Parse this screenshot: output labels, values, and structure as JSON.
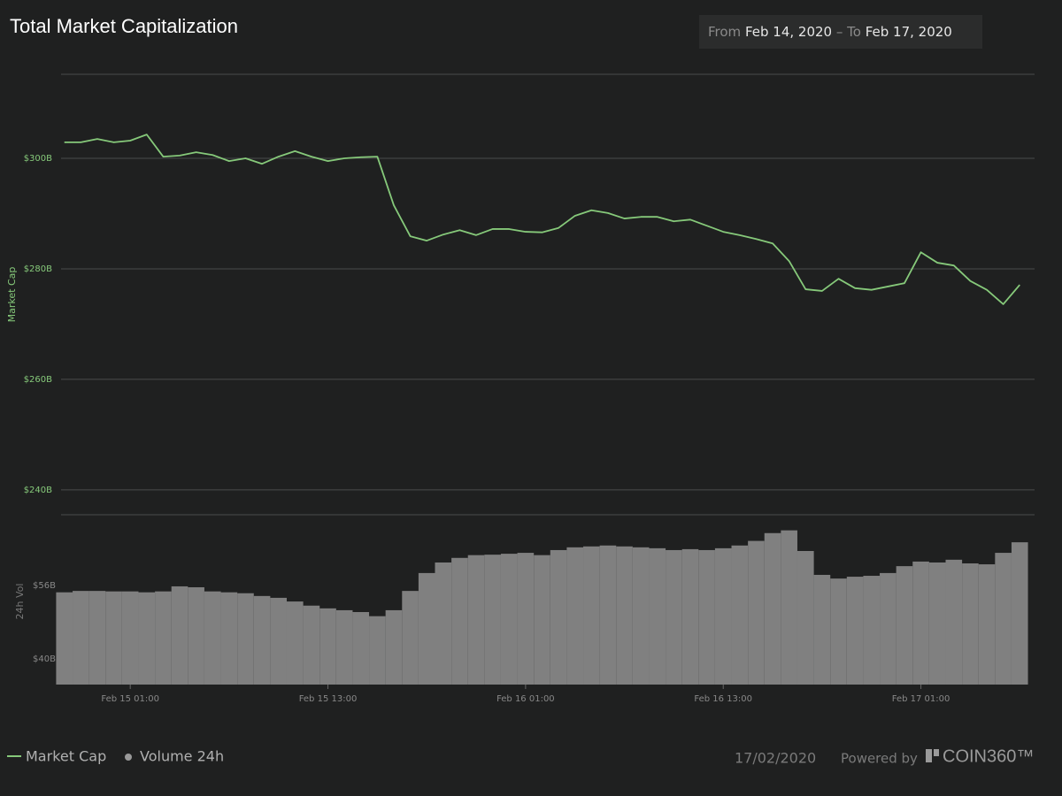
{
  "header": {
    "title": "Total Market Capitalization",
    "range_from_label": "From",
    "range_from": "Feb 14, 2020",
    "range_separator": "–",
    "range_to_label": "To",
    "range_to": "Feb 17, 2020"
  },
  "chart_data": [
    {
      "type": "line",
      "y_label": "Market Cap",
      "x": [
        "2020-02-14 21:00",
        "2020-02-14 22:00",
        "2020-02-14 23:00",
        "2020-02-15 00:00",
        "2020-02-15 01:00",
        "2020-02-15 02:00",
        "2020-02-15 03:00",
        "2020-02-15 04:00",
        "2020-02-15 05:00",
        "2020-02-15 06:00",
        "2020-02-15 07:00",
        "2020-02-15 08:00",
        "2020-02-15 09:00",
        "2020-02-15 10:00",
        "2020-02-15 11:00",
        "2020-02-15 12:00",
        "2020-02-15 13:00",
        "2020-02-15 14:00",
        "2020-02-15 15:00",
        "2020-02-15 16:00",
        "2020-02-15 17:00",
        "2020-02-15 18:00",
        "2020-02-15 19:00",
        "2020-02-15 20:00",
        "2020-02-15 21:00",
        "2020-02-15 22:00",
        "2020-02-15 23:00",
        "2020-02-16 00:00",
        "2020-02-16 01:00",
        "2020-02-16 02:00",
        "2020-02-16 03:00",
        "2020-02-16 04:00",
        "2020-02-16 05:00",
        "2020-02-16 06:00",
        "2020-02-16 07:00",
        "2020-02-16 08:00",
        "2020-02-16 09:00",
        "2020-02-16 10:00",
        "2020-02-16 11:00",
        "2020-02-16 12:00",
        "2020-02-16 13:00",
        "2020-02-16 14:00",
        "2020-02-16 15:00",
        "2020-02-16 16:00",
        "2020-02-16 17:00",
        "2020-02-16 18:00",
        "2020-02-16 19:00",
        "2020-02-16 20:00",
        "2020-02-16 21:00",
        "2020-02-16 22:00",
        "2020-02-16 23:00",
        "2020-02-17 00:00",
        "2020-02-17 01:00",
        "2020-02-17 02:00",
        "2020-02-17 03:00",
        "2020-02-17 04:00",
        "2020-02-17 05:00",
        "2020-02-17 06:00",
        "2020-02-17 07:00"
      ],
      "series": [
        {
          "name": "Market Cap",
          "color": "#86c97a",
          "values": [
            302.9,
            302.9,
            303.5,
            302.9,
            303.2,
            304.3,
            300.3,
            300.5,
            301.1,
            300.6,
            299.5,
            300.0,
            299.0,
            300.3,
            301.3,
            300.3,
            299.5,
            300.0,
            300.2,
            300.3,
            291.5,
            285.9,
            285.1,
            286.2,
            287.0,
            286.1,
            287.2,
            287.2,
            286.7,
            286.6,
            287.4,
            289.6,
            290.6,
            290.1,
            289.1,
            289.4,
            289.4,
            288.6,
            288.9,
            287.8,
            286.7,
            286.1,
            285.4,
            284.6,
            281.4,
            276.3,
            276.0,
            278.2,
            276.5,
            276.2,
            276.8,
            277.4,
            283.0,
            281.1,
            280.6,
            277.8,
            276.2,
            273.6,
            277.1
          ]
        }
      ],
      "xlim": [
        "2020-02-14 20:48",
        "2020-02-17 07:54"
      ],
      "ylim": [
        235.5,
        315.2
      ],
      "yticks": [
        {
          "value": 240,
          "label": "$240B"
        },
        {
          "value": 260,
          "label": "$260B"
        },
        {
          "value": 280,
          "label": "$280B"
        },
        {
          "value": 300,
          "label": "$300B"
        }
      ],
      "grid": true
    },
    {
      "type": "bar",
      "y_label": "24h Vol",
      "x": [
        "2020-02-14 21:00",
        "2020-02-14 22:00",
        "2020-02-14 23:00",
        "2020-02-15 00:00",
        "2020-02-15 01:00",
        "2020-02-15 02:00",
        "2020-02-15 03:00",
        "2020-02-15 04:00",
        "2020-02-15 05:00",
        "2020-02-15 06:00",
        "2020-02-15 07:00",
        "2020-02-15 08:00",
        "2020-02-15 09:00",
        "2020-02-15 10:00",
        "2020-02-15 11:00",
        "2020-02-15 12:00",
        "2020-02-15 13:00",
        "2020-02-15 14:00",
        "2020-02-15 15:00",
        "2020-02-15 16:00",
        "2020-02-15 17:00",
        "2020-02-15 18:00",
        "2020-02-15 19:00",
        "2020-02-15 20:00",
        "2020-02-15 21:00",
        "2020-02-15 22:00",
        "2020-02-15 23:00",
        "2020-02-16 00:00",
        "2020-02-16 01:00",
        "2020-02-16 02:00",
        "2020-02-16 03:00",
        "2020-02-16 04:00",
        "2020-02-16 05:00",
        "2020-02-16 06:00",
        "2020-02-16 07:00",
        "2020-02-16 08:00",
        "2020-02-16 09:00",
        "2020-02-16 10:00",
        "2020-02-16 11:00",
        "2020-02-16 12:00",
        "2020-02-16 13:00",
        "2020-02-16 14:00",
        "2020-02-16 15:00",
        "2020-02-16 16:00",
        "2020-02-16 17:00",
        "2020-02-16 18:00",
        "2020-02-16 19:00",
        "2020-02-16 20:00",
        "2020-02-16 21:00",
        "2020-02-16 22:00",
        "2020-02-16 23:00",
        "2020-02-17 00:00",
        "2020-02-17 01:00",
        "2020-02-17 02:00",
        "2020-02-17 03:00",
        "2020-02-17 04:00",
        "2020-02-17 05:00",
        "2020-02-17 06:00",
        "2020-02-17 07:00"
      ],
      "series": [
        {
          "name": "Volume 24h",
          "color": "#808080",
          "values": [
            54.5,
            54.8,
            54.8,
            54.7,
            54.7,
            54.5,
            54.7,
            55.8,
            55.6,
            54.7,
            54.5,
            54.3,
            53.7,
            53.3,
            52.5,
            51.6,
            51.0,
            50.6,
            50.2,
            49.3,
            50.6,
            54.8,
            58.7,
            61.0,
            62.0,
            62.6,
            62.7,
            62.9,
            63.1,
            62.6,
            63.7,
            64.3,
            64.5,
            64.7,
            64.5,
            64.3,
            64.1,
            63.7,
            63.9,
            63.7,
            64.1,
            64.7,
            65.7,
            67.4,
            68.0,
            63.5,
            58.3,
            57.5,
            57.9,
            58.1,
            58.7,
            60.2,
            61.2,
            61.0,
            61.6,
            60.8,
            60.6,
            63.1,
            65.4
          ]
        }
      ],
      "xlim": [
        "2020-02-14 20:48",
        "2020-02-17 07:54"
      ],
      "xticks": [
        {
          "value": "2020-02-15 01:00",
          "label": "Feb 15 01:00"
        },
        {
          "value": "2020-02-15 13:00",
          "label": "Feb 15 13:00"
        },
        {
          "value": "2020-02-16 01:00",
          "label": "Feb 16 01:00"
        },
        {
          "value": "2020-02-16 13:00",
          "label": "Feb 16 13:00"
        },
        {
          "value": "2020-02-17 01:00",
          "label": "Feb 17 01:00"
        }
      ],
      "ylim": [
        34.4,
        71.4
      ],
      "yticks": [
        {
          "value": 40,
          "label": "$40B"
        },
        {
          "value": 56,
          "label": "$56B"
        }
      ]
    }
  ],
  "footer": {
    "date": "17/02/2020",
    "powered_by": "Powered by",
    "brand": "COIN360™"
  }
}
